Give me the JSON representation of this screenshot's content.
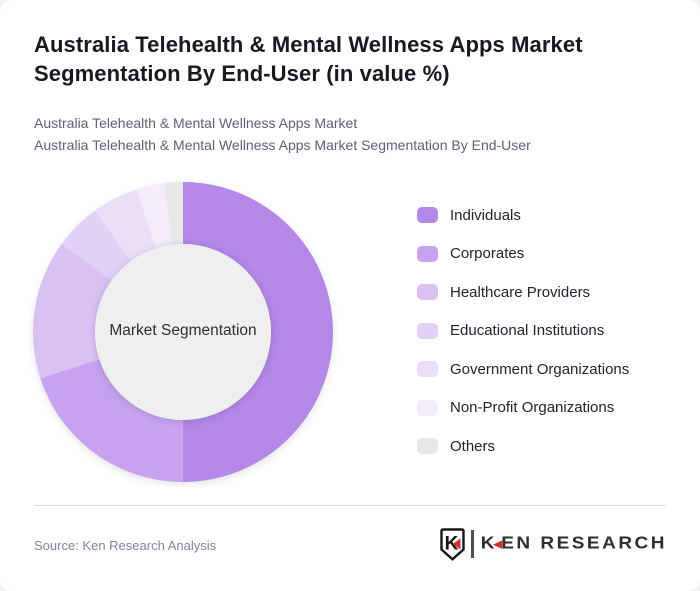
{
  "page": {
    "title": "Australia Telehealth & Mental Wellness Apps Market Segmentation By End-User (in value %)",
    "subtitle_line1": "Australia Telehealth & Mental Wellness Apps Market",
    "subtitle_line2": "Australia Telehealth & Mental Wellness Apps Market Segmentation By End-User"
  },
  "chart_data": {
    "type": "pie",
    "variant": "donut",
    "title": "Australia Telehealth & Mental Wellness Apps Market Segmentation By End-User (in value %)",
    "center_label": "Market Segmentation",
    "unit": "%",
    "categories": [
      "Individuals",
      "Corporates",
      "Healthcare Providers",
      "Educational Institutions",
      "Government Organizations",
      "Non-Profit Organizations",
      "Others"
    ],
    "values": [
      50,
      20,
      15,
      5,
      5,
      3,
      2
    ],
    "colors": [
      "#b388e8",
      "#c7a3ef",
      "#d9c1f4",
      "#e2d1f7",
      "#eadef9",
      "#f2ecfb",
      "#e8e8ea"
    ],
    "legend_position": "right",
    "start_angle_deg": 0,
    "direction": "clockwise",
    "inner_radius_ratio": 0.587,
    "inner_circle_color": "#efefef",
    "center_label_color": "#2e2e2e"
  },
  "footer": {
    "source": "Source: Ken Research Analysis",
    "logo": {
      "emblem_letter": "K",
      "brand_first_letter": "K",
      "brand_rest": "EN RESEARCH",
      "accent_color": "#cf2e2e"
    }
  }
}
